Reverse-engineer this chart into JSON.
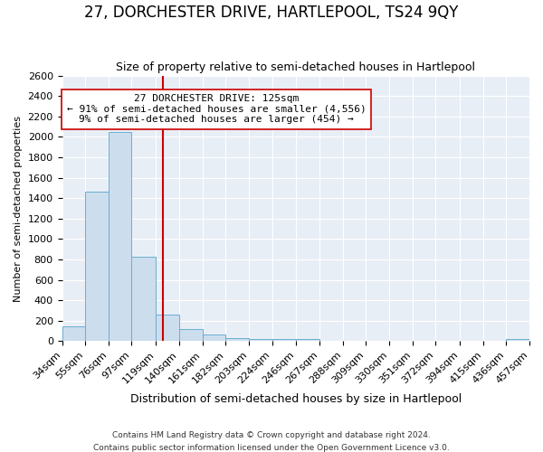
{
  "title": "27, DORCHESTER DRIVE, HARTLEPOOL, TS24 9QY",
  "subtitle": "Size of property relative to semi-detached houses in Hartlepool",
  "xlabel": "Distribution of semi-detached houses by size in Hartlepool",
  "ylabel": "Number of semi-detached properties",
  "footer1": "Contains HM Land Registry data © Crown copyright and database right 2024.",
  "footer2": "Contains public sector information licensed under the Open Government Licence v3.0.",
  "annotation_title": "27 DORCHESTER DRIVE: 125sqm",
  "annotation_line1": "← 91% of semi-detached houses are smaller (4,556)",
  "annotation_line2": "9% of semi-detached houses are larger (454) →",
  "property_size": 125,
  "bin_edges": [
    34,
    55,
    76,
    97,
    119,
    140,
    161,
    182,
    203,
    224,
    246,
    267,
    288,
    309,
    330,
    351,
    372,
    394,
    415,
    436,
    457
  ],
  "bar_heights": [
    150,
    1460,
    2050,
    830,
    260,
    120,
    65,
    30,
    20,
    20,
    20,
    0,
    0,
    0,
    0,
    0,
    0,
    0,
    0,
    20
  ],
  "bar_color": "#ccdded",
  "bar_edge_color": "#6aafd4",
  "vline_color": "#cc0000",
  "bg_color": "#e8eef6",
  "grid_color": "#ffffff",
  "title_fontsize": 12,
  "subtitle_fontsize": 9,
  "ylabel_fontsize": 8,
  "xlabel_fontsize": 9,
  "tick_fontsize": 8,
  "footer_fontsize": 6.5,
  "annotation_fontsize": 8,
  "ylim": [
    0,
    2600
  ],
  "yticks": [
    0,
    200,
    400,
    600,
    800,
    1000,
    1200,
    1400,
    1600,
    1800,
    2000,
    2200,
    2400,
    2600
  ]
}
